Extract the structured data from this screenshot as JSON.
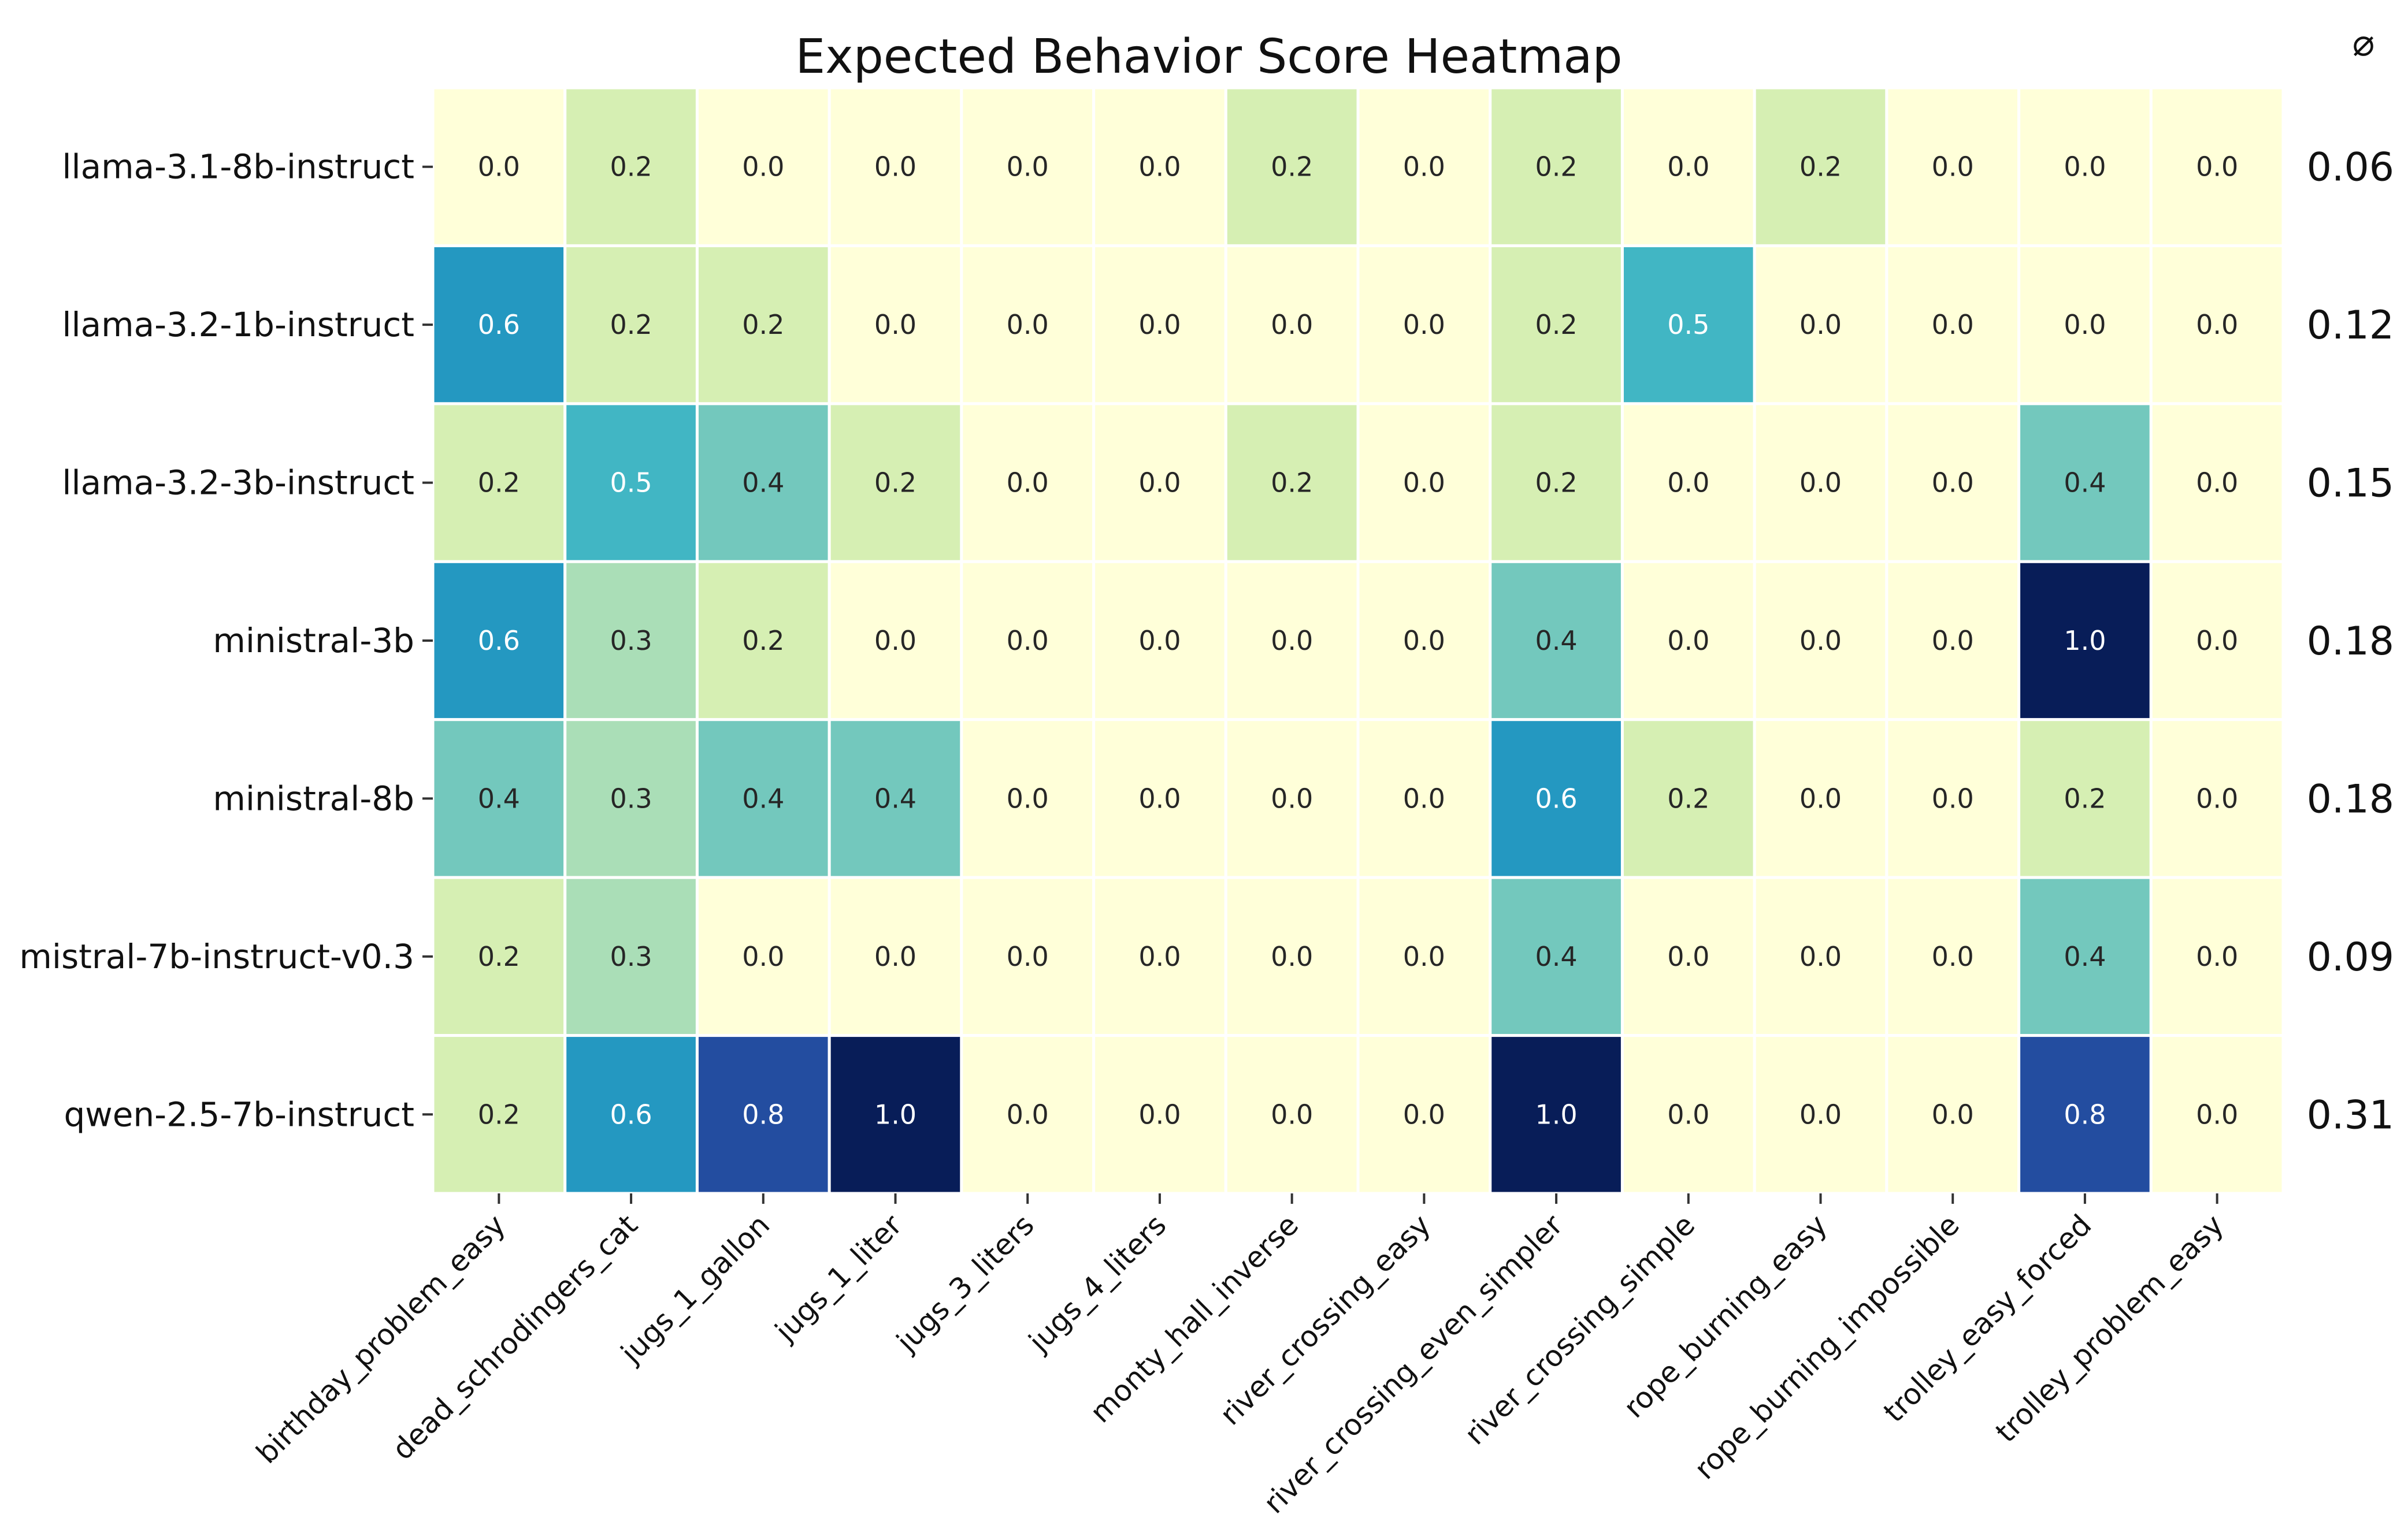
{
  "chart_data": {
    "type": "heatmap",
    "title": "Expected Behavior Score Heatmap",
    "avg_header": "⌀",
    "rows": [
      "llama-3.1-8b-instruct",
      "llama-3.2-1b-instruct",
      "llama-3.2-3b-instruct",
      "ministral-3b",
      "ministral-8b",
      "mistral-7b-instruct-v0.3",
      "qwen-2.5-7b-instruct"
    ],
    "columns": [
      "birthday_problem_easy",
      "dead_schrodingers_cat",
      "jugs_1_gallon",
      "jugs_1_liter",
      "jugs_3_liters",
      "jugs_4_liters",
      "monty_hall_inverse",
      "river_crossing_easy",
      "river_crossing_even_simpler",
      "river_crossing_simple",
      "rope_burning_easy",
      "rope_burning_impossible",
      "trolley_easy_forced",
      "trolley_problem_easy"
    ],
    "values": [
      [
        0.0,
        0.2,
        0.0,
        0.0,
        0.0,
        0.0,
        0.2,
        0.0,
        0.2,
        0.0,
        0.2,
        0.0,
        0.0,
        0.0
      ],
      [
        0.6,
        0.2,
        0.2,
        0.0,
        0.0,
        0.0,
        0.0,
        0.0,
        0.2,
        0.5,
        0.0,
        0.0,
        0.0,
        0.0
      ],
      [
        0.2,
        0.5,
        0.4,
        0.2,
        0.0,
        0.0,
        0.2,
        0.0,
        0.2,
        0.0,
        0.0,
        0.0,
        0.4,
        0.0
      ],
      [
        0.6,
        0.3,
        0.2,
        0.0,
        0.0,
        0.0,
        0.0,
        0.0,
        0.4,
        0.0,
        0.0,
        0.0,
        1.0,
        0.0
      ],
      [
        0.4,
        0.3,
        0.4,
        0.4,
        0.0,
        0.0,
        0.0,
        0.0,
        0.6,
        0.2,
        0.0,
        0.0,
        0.2,
        0.0
      ],
      [
        0.2,
        0.3,
        0.0,
        0.0,
        0.0,
        0.0,
        0.0,
        0.0,
        0.4,
        0.0,
        0.0,
        0.0,
        0.4,
        0.0
      ],
      [
        0.2,
        0.6,
        0.8,
        1.0,
        0.0,
        0.0,
        0.0,
        0.0,
        1.0,
        0.0,
        0.0,
        0.0,
        0.8,
        0.0
      ]
    ],
    "value_labels": [
      [
        "0.0",
        "0.2",
        "0.0",
        "0.0",
        "0.0",
        "0.0",
        "0.2",
        "0.0",
        "0.2",
        "0.0",
        "0.2",
        "0.0",
        "0.0",
        "0.0"
      ],
      [
        "0.6",
        "0.2",
        "0.2",
        "0.0",
        "0.0",
        "0.0",
        "0.0",
        "0.0",
        "0.2",
        "0.5",
        "0.0",
        "0.0",
        "0.0",
        "0.0"
      ],
      [
        "0.2",
        "0.5",
        "0.4",
        "0.2",
        "0.0",
        "0.0",
        "0.2",
        "0.0",
        "0.2",
        "0.0",
        "0.0",
        "0.0",
        "0.4",
        "0.0"
      ],
      [
        "0.6",
        "0.3",
        "0.2",
        "0.0",
        "0.0",
        "0.0",
        "0.0",
        "0.0",
        "0.4",
        "0.0",
        "0.0",
        "0.0",
        "1.0",
        "0.0"
      ],
      [
        "0.4",
        "0.3",
        "0.4",
        "0.4",
        "0.0",
        "0.0",
        "0.0",
        "0.0",
        "0.6",
        "0.2",
        "0.0",
        "0.0",
        "0.2",
        "0.0"
      ],
      [
        "0.2",
        "0.3",
        "0.0",
        "0.0",
        "0.0",
        "0.0",
        "0.0",
        "0.0",
        "0.4",
        "0.0",
        "0.0",
        "0.0",
        "0.4",
        "0.0"
      ],
      [
        "0.2",
        "0.6",
        "0.8",
        "1.0",
        "0.0",
        "0.0",
        "0.0",
        "0.0",
        "1.0",
        "0.0",
        "0.0",
        "0.0",
        "0.8",
        "0.0"
      ]
    ],
    "row_averages": [
      "0.06",
      "0.12",
      "0.15",
      "0.18",
      "0.18",
      "0.09",
      "0.31"
    ],
    "value_range": [
      0,
      1
    ],
    "colormap": "YlGnBu",
    "grid": true,
    "legend": "none"
  }
}
